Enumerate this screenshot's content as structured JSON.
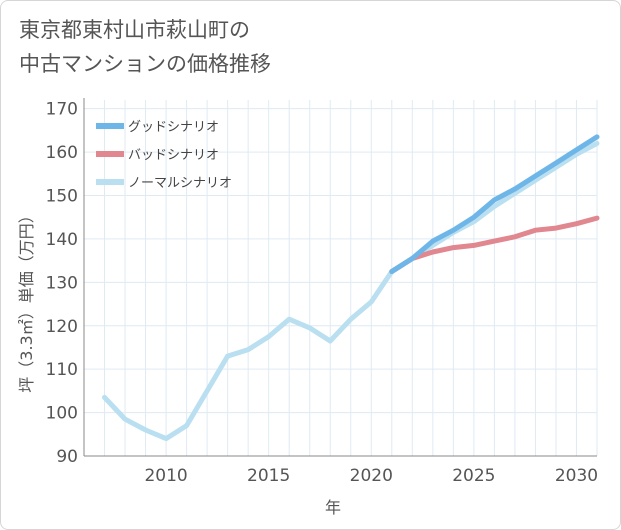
{
  "chart_data": {
    "type": "line",
    "title_lines": [
      "東京都東村山市萩山町の",
      "中古マンションの価格推移"
    ],
    "xlabel": "年",
    "ylabel": "坪（3.3㎡）単価（万円）",
    "xlim": [
      2006,
      2031
    ],
    "ylim": [
      90,
      172
    ],
    "x_ticks": [
      2010,
      2015,
      2020,
      2025,
      2030
    ],
    "y_ticks": [
      90,
      100,
      110,
      120,
      130,
      140,
      150,
      160,
      170
    ],
    "grid": true,
    "legend_position": "top-left",
    "series": [
      {
        "name": "グッドシナリオ",
        "color": "#6fb6e8",
        "x": [
          2021,
          2022,
          2023,
          2024,
          2025,
          2026,
          2027,
          2028,
          2029,
          2030,
          2031
        ],
        "values": [
          132.5,
          135.5,
          139.5,
          142.0,
          145.0,
          149.0,
          151.5,
          154.5,
          157.5,
          160.5,
          163.5
        ]
      },
      {
        "name": "バッドシナリオ",
        "color": "#e0878f",
        "x": [
          2021,
          2022,
          2023,
          2024,
          2025,
          2026,
          2027,
          2028,
          2029,
          2030,
          2031
        ],
        "values": [
          132.5,
          135.5,
          137.0,
          138.0,
          138.5,
          139.5,
          140.5,
          142.0,
          142.5,
          143.5,
          144.8
        ]
      },
      {
        "name": "ノーマルシナリオ",
        "color": "#b9dff0",
        "x": [
          2007,
          2008,
          2009,
          2010,
          2011,
          2012,
          2013,
          2014,
          2015,
          2016,
          2017,
          2018,
          2019,
          2020,
          2021,
          2022,
          2023,
          2024,
          2025,
          2026,
          2027,
          2028,
          2029,
          2030,
          2031
        ],
        "values": [
          103.5,
          98.5,
          96.0,
          94.0,
          97.0,
          105.0,
          113.0,
          114.5,
          117.5,
          121.5,
          119.5,
          116.5,
          121.5,
          125.5,
          132.5,
          135.5,
          138.5,
          141.5,
          144.0,
          147.5,
          150.5,
          153.5,
          156.5,
          159.5,
          162.0
        ]
      }
    ]
  }
}
